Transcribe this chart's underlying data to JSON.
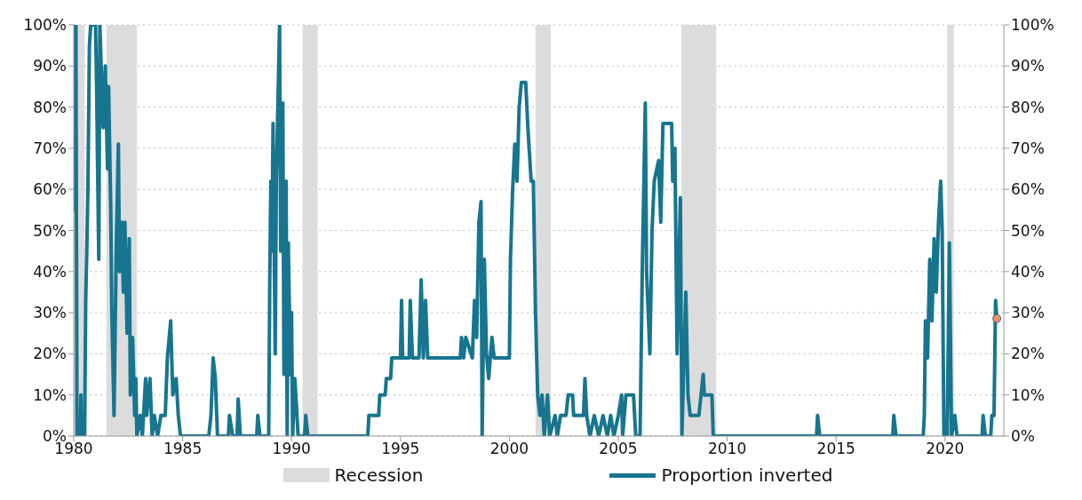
{
  "chart_data": {
    "type": "line",
    "xlim": [
      1980,
      2022.7
    ],
    "xticks": [
      1980,
      1985,
      1990,
      1995,
      2000,
      2005,
      2010,
      2015,
      2020
    ],
    "ylim": [
      0,
      100
    ],
    "yticks": [
      {
        "value": 0,
        "label": "0%"
      },
      {
        "value": 10,
        "label": "10%"
      },
      {
        "value": 20,
        "label": "20%"
      },
      {
        "value": 30,
        "label": "30%"
      },
      {
        "value": 40,
        "label": "40%"
      },
      {
        "value": 50,
        "label": "50%"
      },
      {
        "value": 60,
        "label": "60%"
      },
      {
        "value": 70,
        "label": "70%"
      },
      {
        "value": 80,
        "label": "80%"
      },
      {
        "value": 90,
        "label": "90%"
      },
      {
        "value": 100,
        "label": "100%"
      }
    ],
    "y2lim": [
      0,
      100
    ],
    "y2ticks": [
      {
        "value": 0,
        "label": "0%"
      },
      {
        "value": 10,
        "label": "10%"
      },
      {
        "value": 20,
        "label": "20%"
      },
      {
        "value": 30,
        "label": "30%"
      },
      {
        "value": 40,
        "label": "40%"
      },
      {
        "value": 50,
        "label": "50%"
      },
      {
        "value": 60,
        "label": "60%"
      },
      {
        "value": 70,
        "label": "70%"
      },
      {
        "value": 80,
        "label": "80%"
      },
      {
        "value": 90,
        "label": "90%"
      },
      {
        "value": 100,
        "label": "100%"
      }
    ],
    "grid": "y",
    "legend": "bottom",
    "bands": [
      {
        "axis": "x",
        "from": 1980.0,
        "to": 1980.5,
        "label": "Recession",
        "color": "#dcdcdc"
      },
      {
        "axis": "x",
        "from": 1981.5,
        "to": 1982.9,
        "color": "#dcdcdc"
      },
      {
        "axis": "x",
        "from": 1990.5,
        "to": 1991.2,
        "color": "#dcdcdc"
      },
      {
        "axis": "x",
        "from": 2001.2,
        "to": 2001.9,
        "color": "#dcdcdc"
      },
      {
        "axis": "x",
        "from": 2007.9,
        "to": 2009.5,
        "color": "#dcdcdc"
      },
      {
        "axis": "x",
        "from": 2020.1,
        "to": 2020.4,
        "color": "#dcdcdc"
      }
    ],
    "series": [
      {
        "name": "Proportion inverted",
        "color": "#17758f",
        "marker": "none",
        "line_style": "solid",
        "x": [
          1980.0,
          1980.03,
          1980.07,
          1980.1,
          1980.15,
          1980.3,
          1980.33,
          1980.36,
          1980.5,
          1980.55,
          1980.6,
          1980.65,
          1980.72,
          1980.78,
          1981.0,
          1981.05,
          1981.15,
          1981.2,
          1981.35,
          1981.45,
          1981.55,
          1981.6,
          1981.7,
          1981.75,
          1981.85,
          1981.95,
          1982.05,
          1982.1,
          1982.2,
          1982.28,
          1982.35,
          1982.45,
          1982.55,
          1982.6,
          1982.7,
          1982.8,
          1982.85,
          1982.9,
          1983.05,
          1983.15,
          1983.3,
          1983.35,
          1983.5,
          1983.6,
          1983.7,
          1983.85,
          1984.0,
          1984.2,
          1984.3,
          1984.45,
          1984.55,
          1984.7,
          1984.8,
          1984.9,
          1986.2,
          1986.3,
          1986.4,
          1986.5,
          1986.6,
          1987.1,
          1987.15,
          1987.3,
          1987.5,
          1987.55,
          1987.65,
          1988.4,
          1988.45,
          1988.55,
          1988.95,
          1989.0,
          1989.05,
          1989.1,
          1989.15,
          1989.25,
          1989.3,
          1989.45,
          1989.5,
          1989.6,
          1989.65,
          1989.75,
          1989.8,
          1989.85,
          1989.95,
          1990.0,
          1990.05,
          1990.15,
          1990.25,
          1990.3,
          1990.6,
          1990.65,
          1990.75,
          1993.5,
          1993.55,
          1994.0,
          1994.05,
          1994.3,
          1994.35,
          1994.55,
          1994.6,
          1995.0,
          1995.05,
          1995.1,
          1995.4,
          1995.45,
          1995.55,
          1995.85,
          1995.95,
          1996.05,
          1996.15,
          1996.25,
          1997.75,
          1997.8,
          1997.9,
          1998.0,
          1998.3,
          1998.4,
          1998.5,
          1998.6,
          1998.7,
          1998.75,
          1998.85,
          1998.95,
          1999.05,
          1999.2,
          1999.3,
          2000.0,
          2000.05,
          2000.15,
          2000.25,
          2000.35,
          2000.45,
          2000.55,
          2000.75,
          2000.85,
          2001.0,
          2001.1,
          2001.2,
          2001.3,
          2001.4,
          2001.5,
          2001.6,
          2001.75,
          2001.85,
          2002.1,
          2002.2,
          2002.35,
          2002.6,
          2002.7,
          2002.9,
          2002.95,
          2003.4,
          2003.47,
          2003.55,
          2003.7,
          2003.9,
          2004.1,
          2004.3,
          2004.5,
          2004.65,
          2004.8,
          2005.0,
          2005.15,
          2005.2,
          2005.35,
          2005.7,
          2005.8,
          2006.0,
          2006.05,
          2006.1,
          2006.24,
          2006.3,
          2006.45,
          2006.55,
          2006.65,
          2006.85,
          2006.95,
          2007.05,
          2007.45,
          2007.5,
          2007.6,
          2007.7,
          2007.85,
          2007.92,
          2008.1,
          2008.2,
          2008.3,
          2008.7,
          2008.8,
          2008.9,
          2008.95,
          2009.3,
          2009.36,
          2014.1,
          2014.15,
          2014.25,
          2017.6,
          2017.65,
          2017.75,
          2019.0,
          2019.05,
          2019.1,
          2019.2,
          2019.3,
          2019.4,
          2019.5,
          2019.6,
          2019.7,
          2019.8,
          2019.87,
          2019.95,
          2020.1,
          2020.2,
          2020.3,
          2020.45,
          2020.55,
          2021.7,
          2021.75,
          2021.85,
          2022.1,
          2022.15,
          2022.25,
          2022.32,
          2022.38
        ],
        "values": [
          67,
          100,
          55,
          100,
          0,
          0,
          10,
          0,
          0,
          33,
          45,
          60,
          95,
          100,
          100,
          85,
          43,
          100,
          75,
          90,
          65,
          85,
          55,
          30,
          5,
          45,
          71,
          40,
          52,
          35,
          52,
          25,
          48,
          10,
          24,
          5,
          14,
          0,
          5,
          0,
          14,
          5,
          14,
          0,
          5,
          0,
          5,
          5,
          19,
          28,
          10,
          14,
          5,
          0,
          0,
          5,
          19,
          14,
          0,
          0,
          5,
          0,
          0,
          9,
          0,
          0,
          5,
          0,
          0,
          38,
          62,
          45,
          76,
          20,
          62,
          100,
          45,
          81,
          15,
          62,
          0,
          47,
          15,
          30,
          0,
          14,
          5,
          0,
          0,
          5,
          0,
          0,
          5,
          5,
          10,
          10,
          14,
          14,
          19,
          19,
          33,
          19,
          19,
          33,
          19,
          19,
          38,
          19,
          33,
          19,
          19,
          24,
          19,
          24,
          19,
          33,
          24,
          52,
          57,
          0,
          43,
          20,
          14,
          24,
          19,
          19,
          43,
          60,
          71,
          62,
          80,
          86,
          86,
          75,
          62,
          62,
          30,
          10,
          5,
          10,
          0,
          10,
          0,
          5,
          0,
          5,
          5,
          10,
          10,
          5,
          5,
          14,
          5,
          0,
          5,
          0,
          5,
          0,
          5,
          0,
          5,
          10,
          0,
          10,
          10,
          0,
          0,
          20,
          40,
          81,
          40,
          20,
          50,
          62,
          67,
          52,
          76,
          76,
          62,
          70,
          20,
          58,
          0,
          35,
          10,
          5,
          5,
          10,
          15,
          10,
          10,
          0,
          0,
          5,
          0,
          0,
          5,
          0,
          0,
          5,
          28,
          19,
          43,
          28,
          48,
          35,
          52,
          62,
          50,
          0,
          0,
          47,
          0,
          5,
          0,
          0,
          5,
          0,
          0,
          5,
          5,
          33,
          28.6
        ]
      },
      {
        "type": "scatter",
        "color": "#f28c62",
        "marker": "circle",
        "x": [
          2022.38
        ],
        "values": [
          28.6
        ]
      }
    ]
  }
}
